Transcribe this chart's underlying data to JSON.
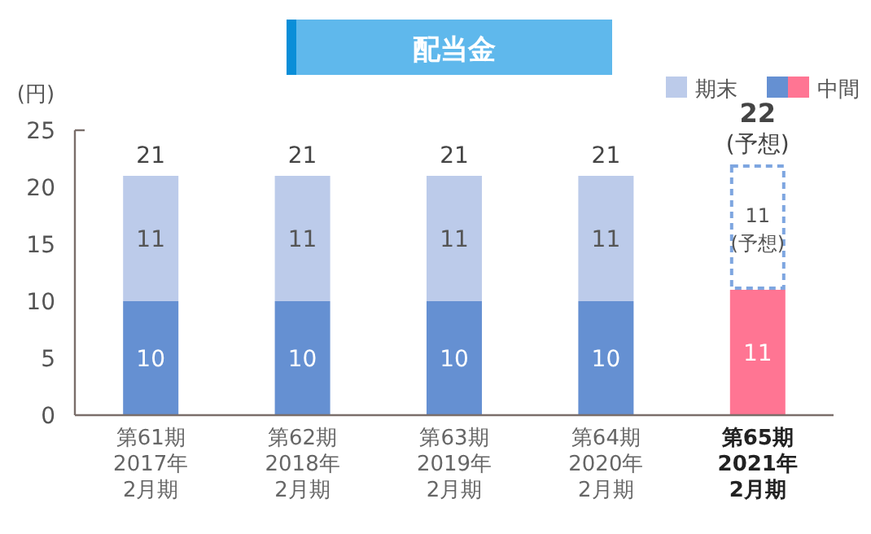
{
  "chart_data": {
    "type": "bar",
    "title": "配当金",
    "ylabel": "(円)",
    "stacked": true,
    "legend": "top right",
    "categories": [
      "第61期\n2017年\n2月期",
      "第62期\n2018年\n2月期",
      "第63期\n2019年\n2月期",
      "第64期\n2020年\n2月期",
      "第65期\n2021年\n2月期"
    ],
    "series": [
      {
        "name": "中間",
        "colors": [
          "#6590d2",
          "#6590d2",
          "#6590d2",
          "#6590d2",
          "#ff7593"
        ],
        "values": [
          10,
          10,
          10,
          10,
          11
        ],
        "value_labels": [
          "10",
          "10",
          "10",
          "10",
          "11"
        ]
      },
      {
        "name": "期末",
        "colors": [
          "#bccbea",
          "#bccbea",
          "#bccbea",
          "#bccbea",
          "#ffffff"
        ],
        "values": [
          11,
          11,
          11,
          11,
          11
        ],
        "value_labels": [
          "11",
          "11",
          "11",
          "11",
          "11\n(予想)"
        ]
      }
    ],
    "totals": [
      "21",
      "21",
      "21",
      "21",
      "22\n(予想)"
    ],
    "ylim": [
      0,
      25
    ],
    "yticks": [
      0,
      5,
      10,
      15,
      20,
      25
    ]
  }
}
